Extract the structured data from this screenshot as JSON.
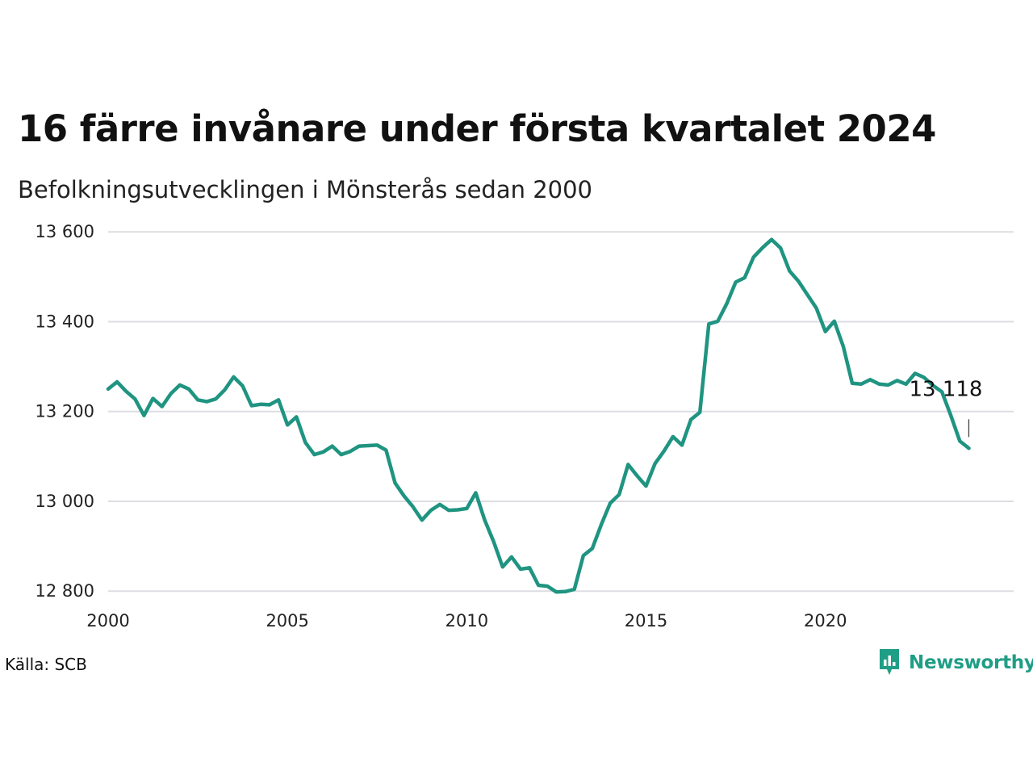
{
  "header": {
    "title": "16 färre invånare under första kvartalet 2024",
    "subtitle": "Befolkningsutvecklingen i Mönsterås sedan 2000"
  },
  "footer": {
    "source": "Källa: SCB",
    "brand": "Newsworthy",
    "brand_icon": "newsworthy-logo-icon"
  },
  "colors": {
    "line": "#1f9481",
    "grid": "#dddde3",
    "brand": "#1f9e86"
  },
  "chart_data": {
    "type": "line",
    "title": "16 färre invånare under första kvartalet 2024",
    "subtitle": "Befolkningsutvecklingen i Mönsterås sedan 2000",
    "x_ticks": [
      2000,
      2005,
      2010,
      2015,
      2020
    ],
    "y_ticks": [
      12800,
      13000,
      13200,
      13400,
      13600
    ],
    "y_tick_labels": [
      "12 800",
      "13 000",
      "13 200",
      "13 400",
      "13 600"
    ],
    "xlim": [
      2000,
      2025.25
    ],
    "ylim": [
      12795,
      13640
    ],
    "grid": "horizontal",
    "end_label": "13 118",
    "series": [
      {
        "x": [
          2000.0,
          2000.25,
          2000.5,
          2000.75,
          2001.0,
          2001.25,
          2001.5,
          2001.75,
          2002.0,
          2002.25,
          2002.5,
          2002.75,
          2003.0,
          2003.25,
          2003.5,
          2003.75,
          2004.0,
          2004.25,
          2004.5,
          2004.75,
          2005.0,
          2005.25,
          2005.5,
          2005.75,
          2006.0,
          2006.25,
          2006.5,
          2006.75,
          2007.0,
          2007.25,
          2007.5,
          2007.75,
          2008.0,
          2008.25,
          2008.5,
          2008.75,
          2009.0,
          2009.25,
          2009.5,
          2009.75,
          2010.0,
          2010.25,
          2010.5,
          2010.75,
          2011.0,
          2011.25,
          2011.5,
          2011.75,
          2012.0,
          2012.25,
          2012.5,
          2012.75,
          2013.0,
          2013.25,
          2013.5,
          2013.75,
          2014.0,
          2014.25,
          2014.5,
          2014.75,
          2015.0,
          2015.25,
          2015.5,
          2015.75,
          2016.0,
          2016.25,
          2016.5,
          2016.75,
          2017.0,
          2017.25,
          2017.5,
          2017.75,
          2018.0,
          2018.25,
          2018.5,
          2018.75,
          2019.0,
          2019.25,
          2019.5,
          2019.75,
          2020.0,
          2020.25,
          2020.5,
          2020.75,
          2021.0,
          2021.25,
          2021.5,
          2021.75,
          2022.0,
          2022.25,
          2022.5,
          2022.75,
          2023.0,
          2023.25,
          2023.5,
          2023.75,
          2024.0
        ],
        "values": [
          13250,
          13266,
          13245,
          13228,
          13191,
          13229,
          13211,
          13240,
          13259,
          13250,
          13226,
          13222,
          13228,
          13248,
          13277,
          13257,
          13213,
          13216,
          13215,
          13226,
          13170,
          13188,
          13131,
          13104,
          13110,
          13123,
          13104,
          13111,
          13123,
          13124,
          13125,
          13114,
          13041,
          13012,
          12988,
          12958,
          12980,
          12993,
          12980,
          12981,
          12984,
          13019,
          12958,
          12910,
          12854,
          12876,
          12849,
          12852,
          12813,
          12811,
          12798,
          12799,
          12804,
          12879,
          12895,
          12948,
          12996,
          13015,
          13082,
          13057,
          13034,
          13084,
          13112,
          13144,
          13125,
          13182,
          13198,
          13395,
          13401,
          13440,
          13488,
          13498,
          13544,
          13565,
          13583,
          13564,
          13513,
          13490,
          13460,
          13430,
          13378,
          13401,
          13345,
          13263,
          13261,
          13271,
          13261,
          13259,
          13269,
          13261,
          13285,
          13276,
          13258,
          13244,
          13191,
          13134,
          13118
        ]
      }
    ]
  }
}
